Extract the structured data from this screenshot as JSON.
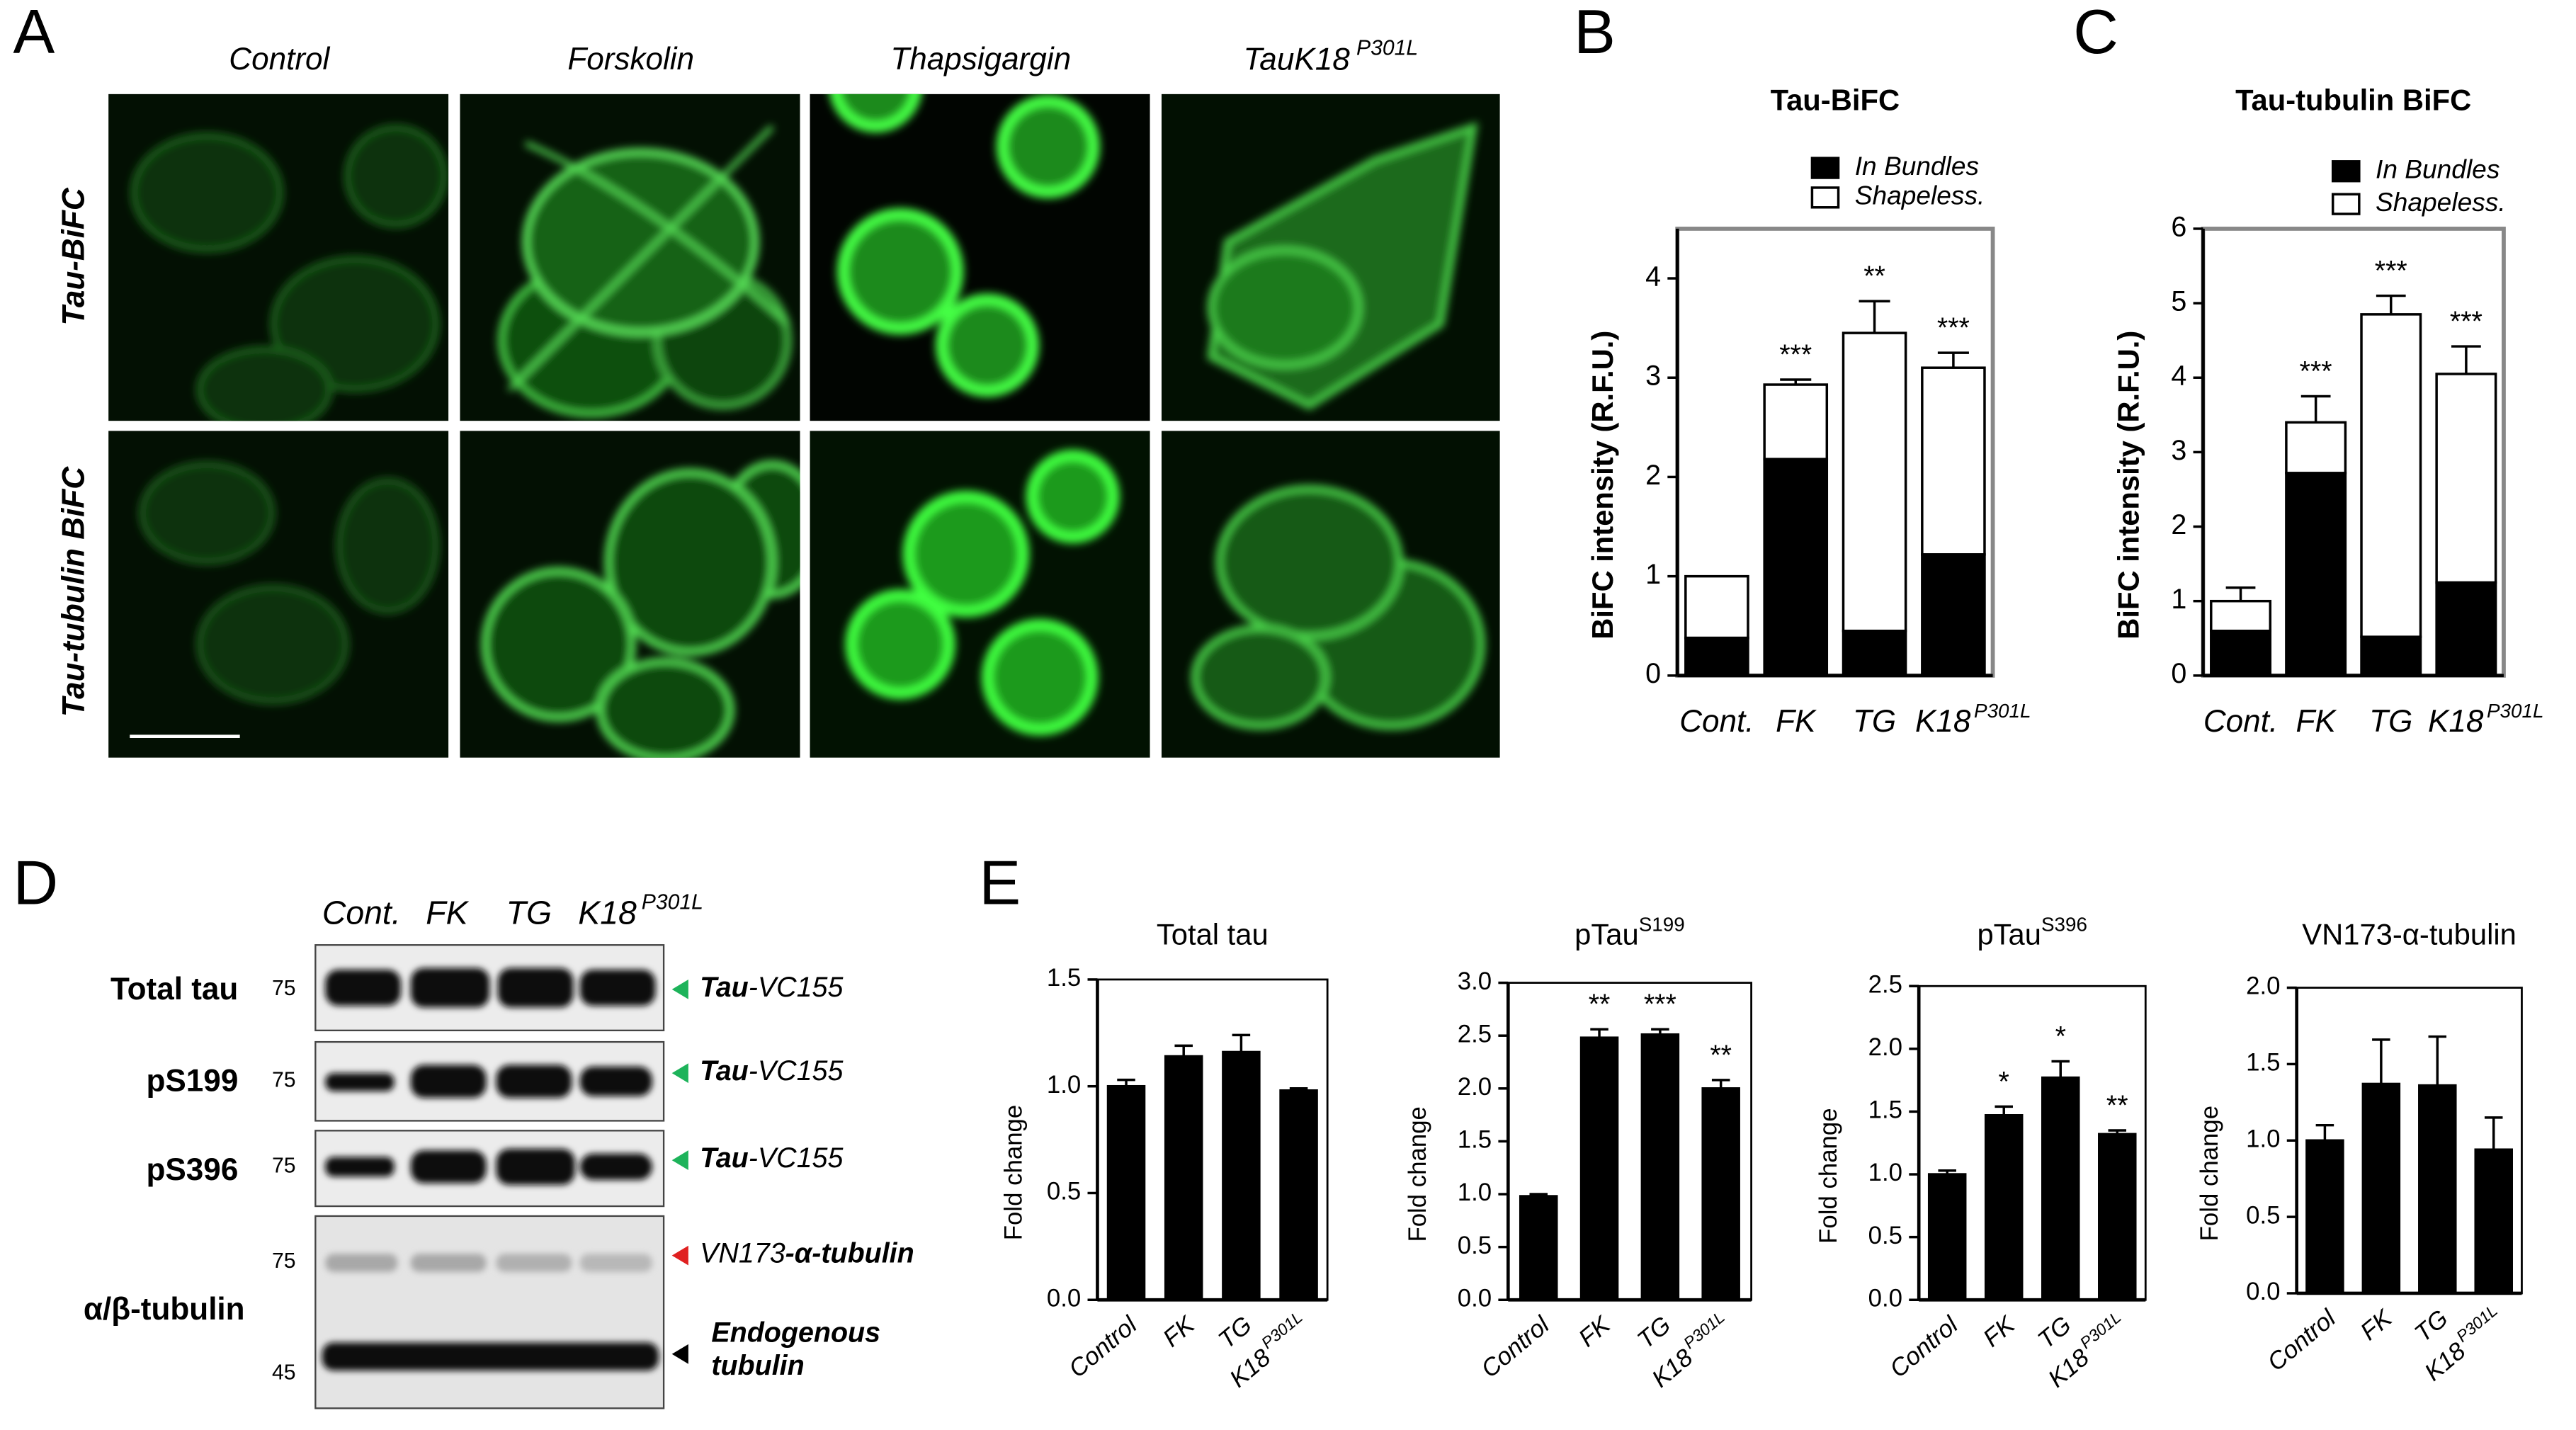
{
  "panel_labels": [
    "A",
    "B",
    "C",
    "D",
    "E"
  ],
  "figure_a": {
    "columns": [
      "Control",
      "Forskolin",
      "Thapsigargin",
      "TauK18"
    ],
    "column_superscripts": [
      null,
      null,
      null,
      "P301L"
    ],
    "rows": [
      "Tau-BiFC",
      "Tau-tubulin BiFC"
    ]
  },
  "figure_d": {
    "lanes": [
      "Cont.",
      "FK",
      "TG",
      "K18"
    ],
    "lane_superscripts": [
      null,
      null,
      null,
      "P301L"
    ],
    "rows": [
      "Total tau",
      "pS199",
      "pS396",
      "α/β-tubulin"
    ],
    "markers": [
      75,
      75,
      75,
      75,
      45
    ],
    "annotations": [
      [
        "Tau",
        "-VC155"
      ],
      [
        "Tau",
        "-VC155"
      ],
      [
        "Tau",
        "-VC155"
      ],
      [
        "VN173",
        "-α-tubulin"
      ],
      [
        "Endogenous",
        "tubulin"
      ]
    ]
  },
  "chart_data": [
    {
      "type": "bar",
      "stacked": true,
      "title": "Tau-BiFC",
      "y_label": "BiFC intensity (R.F.U.)",
      "categories": [
        "Cont.",
        "FK",
        "TG",
        "K18"
      ],
      "category_superscripts": [
        null,
        null,
        null,
        "P301L"
      ],
      "series": [
        {
          "name": "In Bundles",
          "color": "#000000",
          "values": [
            0.38,
            2.18,
            0.45,
            1.22
          ]
        },
        {
          "name": "Shapeless.",
          "color": "#ffffff",
          "values": [
            0.62,
            0.75,
            3.0,
            1.88
          ],
          "errors": [
            null,
            0.05,
            0.32,
            0.15
          ]
        }
      ],
      "annotations": [
        null,
        "***",
        "**",
        "***"
      ],
      "ylim": [
        0,
        4.5
      ],
      "yticks": [
        0,
        1,
        2,
        3,
        4
      ],
      "legend": "top-right"
    },
    {
      "type": "bar",
      "stacked": true,
      "title": "Tau-tubulin BiFC",
      "y_label": "BiFC intensity (R.F.U.)",
      "categories": [
        "Cont.",
        "FK",
        "TG",
        "K18"
      ],
      "category_superscripts": [
        null,
        null,
        null,
        "P301L"
      ],
      "series": [
        {
          "name": "In Bundles",
          "color": "#000000",
          "values": [
            0.6,
            2.72,
            0.52,
            1.25
          ]
        },
        {
          "name": "Shapeless.",
          "color": "#ffffff",
          "values": [
            0.4,
            0.68,
            4.33,
            2.8
          ],
          "errors": [
            0.18,
            0.35,
            0.25,
            0.37
          ]
        }
      ],
      "annotations": [
        null,
        "***",
        "***",
        "***"
      ],
      "ylim": [
        0,
        6
      ],
      "yticks": [
        0,
        1,
        2,
        3,
        4,
        5,
        6
      ],
      "legend": "top-right"
    },
    {
      "type": "bar",
      "title": "Total tau",
      "y_label": "Fold change",
      "categories": [
        "Control",
        "FK",
        "TG",
        "K18"
      ],
      "category_superscripts": [
        null,
        null,
        null,
        "P301L"
      ],
      "color": "#000000",
      "values": [
        1.0,
        1.14,
        1.16,
        0.98
      ],
      "errors": [
        0.03,
        0.05,
        0.08,
        0.01
      ],
      "ylim": [
        0,
        1.5
      ],
      "yticks": [
        {
          "value": 0,
          "label": "0.0"
        },
        0.5,
        {
          "value": 1,
          "label": "1.0"
        },
        1.5
      ]
    },
    {
      "type": "bar",
      "title": "pTau",
      "title_superscript": "S199",
      "y_label": "Fold change",
      "categories": [
        "Control",
        "FK",
        "TG",
        "K18"
      ],
      "category_superscripts": [
        null,
        null,
        null,
        "P301L"
      ],
      "color": "#000000",
      "values": [
        0.98,
        2.48,
        2.51,
        2.0
      ],
      "errors": [
        0.02,
        0.08,
        0.05,
        0.08
      ],
      "annotations": [
        null,
        "**",
        "***",
        "**"
      ],
      "ylim": [
        0,
        3
      ],
      "yticks": [
        {
          "value": 0,
          "label": "0.0"
        },
        0.5,
        {
          "value": 1,
          "label": "1.0"
        },
        1.5,
        {
          "value": 2,
          "label": "2.0"
        },
        2.5,
        {
          "value": 3,
          "label": "3.0"
        }
      ]
    },
    {
      "type": "bar",
      "title": "pTau",
      "title_superscript": "S396",
      "y_label": "Fold change",
      "categories": [
        "Control",
        "FK",
        "TG",
        "K18"
      ],
      "category_superscripts": [
        null,
        null,
        null,
        "P301L"
      ],
      "color": "#000000",
      "values": [
        1.0,
        1.47,
        1.77,
        1.32
      ],
      "errors": [
        0.03,
        0.07,
        0.13,
        0.03
      ],
      "annotations": [
        null,
        "*",
        "*",
        "**"
      ],
      "ylim": [
        0,
        2.5
      ],
      "yticks": [
        {
          "value": 0,
          "label": "0.0"
        },
        0.5,
        {
          "value": 1,
          "label": "1.0"
        },
        1.5,
        {
          "value": 2,
          "label": "2.0"
        },
        2.5
      ]
    },
    {
      "type": "bar",
      "title": "VN173-α-tubulin",
      "y_label": "Fold change",
      "categories": [
        "Control",
        "FK",
        "TG",
        "K18"
      ],
      "category_superscripts": [
        null,
        null,
        null,
        "P301L"
      ],
      "color": "#000000",
      "values": [
        1.0,
        1.37,
        1.36,
        0.94
      ],
      "errors": [
        0.1,
        0.29,
        0.32,
        0.21
      ],
      "ylim": [
        0,
        2
      ],
      "yticks": [
        {
          "value": 0,
          "label": "0.0"
        },
        0.5,
        {
          "value": 1,
          "label": "1.0"
        },
        1.5,
        {
          "value": 2,
          "label": "2.0"
        }
      ]
    }
  ]
}
